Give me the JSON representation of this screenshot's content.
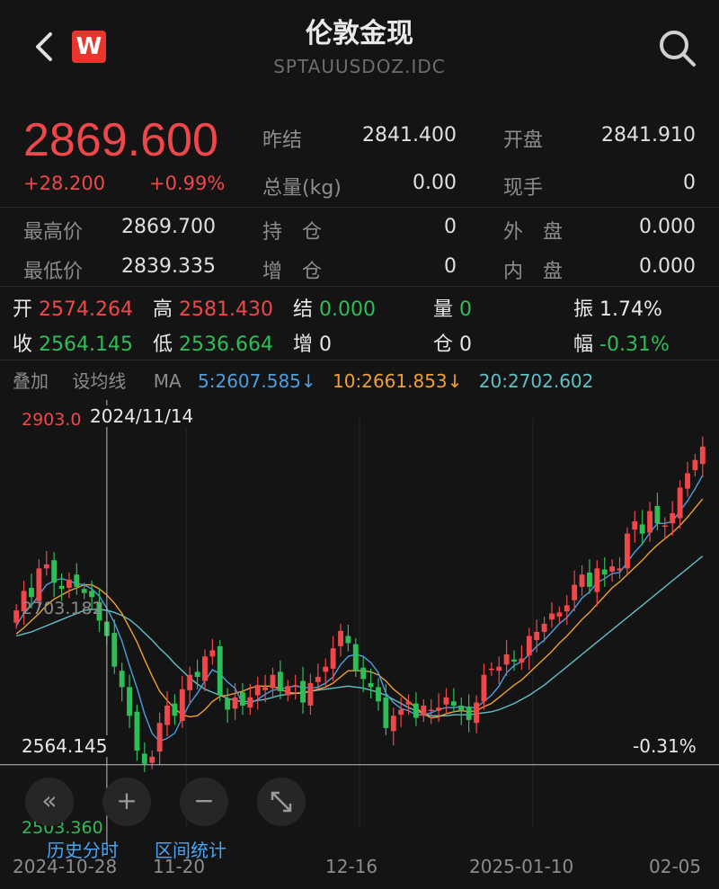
{
  "header": {
    "title": "伦敦金现",
    "code": "SPTAUUSDOZ.IDC",
    "logo": "W",
    "back_icon": "chevron-left-icon",
    "search_icon": "search-icon"
  },
  "quote": {
    "price": "2869.600",
    "change": "+28.200",
    "change_pct": "+0.99%",
    "prev_settle_label": "昨结",
    "prev_settle": "2841.400",
    "open_label": "开盘",
    "open": "2841.910",
    "volume_label": "总量(kg)",
    "volume": "0.00",
    "current_hand_label": "现手",
    "current_hand": "0",
    "high_label": "最高价",
    "high": "2869.700",
    "hold_label": "持　仓",
    "hold": "0",
    "outer_label": "外　盘",
    "outer": "0.000",
    "low_label": "最低价",
    "low": "2839.335",
    "add_label": "增　仓",
    "add": "0",
    "inner_label": "内　盘",
    "inner": "0.000"
  },
  "candle_info": {
    "open_label": "开",
    "open": "2574.264",
    "high_label": "高",
    "high": "2581.430",
    "settle_label": "结",
    "settle": "0.000",
    "vol_label": "量",
    "vol": "0",
    "amp_label": "振",
    "amp": "1.74%",
    "close_label": "收",
    "close": "2564.145",
    "low_label": "低",
    "low": "2536.664",
    "inc_label": "增",
    "inc": "0",
    "pos_label": "仓",
    "pos": "0",
    "range_label": "幅",
    "range": "-0.31%"
  },
  "ma_bar": {
    "overlay": "叠加",
    "set_ma": "设均线",
    "ma": "MA",
    "ma5": "5:2607.585↓",
    "ma10": "10:2661.853↓",
    "ma20": "20:2702.602",
    "ma5_color": "#4a9fe0",
    "ma10_color": "#f0a030",
    "ma20_color": "#5fc2c8"
  },
  "chart_labels": {
    "top_price": "2903.0",
    "crosshair_date": "2024/11/14",
    "mid_price": "2703.182",
    "crosshair_price": "2564.145",
    "crosshair_pct": "-0.31%",
    "bottom_price": "2503.360"
  },
  "controls": {
    "rewind": "«",
    "zoom_in": "+",
    "zoom_out": "−",
    "fullscreen_icon": "expand-icon",
    "history": "历史分时",
    "range_stats": "区间统计"
  },
  "x_axis": [
    "2024-10-28",
    "11-20",
    "12-16",
    "2025-01-10",
    "02-05"
  ],
  "colors": {
    "up": "#f0474b",
    "down": "#2fbd57",
    "bg": "#141414"
  },
  "chart_data": {
    "type": "candlestick",
    "ylim": [
      2503.36,
      2903.0
    ],
    "y_ticks": [
      2903.0,
      2703.182,
      2503.36
    ],
    "x_ticks": [
      "2024-10-28",
      "11-20",
      "12-16",
      "2025-01-10",
      "02-05"
    ],
    "crosshair": {
      "date": "2024/11/14",
      "value": 2564.145
    },
    "ma_latest": {
      "MA5": 2607.585,
      "MA10": 2661.853,
      "MA20": 2702.602
    },
    "close": [
      2715,
      2734,
      2728,
      2756,
      2760,
      2742,
      2736,
      2745,
      2738,
      2732,
      2728,
      2705,
      2690,
      2660,
      2640,
      2612,
      2578,
      2565,
      2572,
      2605,
      2622,
      2612,
      2638,
      2652,
      2650,
      2670,
      2676,
      2632,
      2618,
      2630,
      2622,
      2630,
      2642,
      2640,
      2652,
      2636,
      2641,
      2642,
      2625,
      2644,
      2650,
      2660,
      2678,
      2695,
      2683,
      2656,
      2648,
      2640,
      2626,
      2600,
      2612,
      2618,
      2626,
      2610,
      2622,
      2618,
      2620,
      2630,
      2622,
      2617,
      2608,
      2625,
      2652,
      2658,
      2660,
      2672,
      2665,
      2668,
      2690,
      2694,
      2702,
      2712,
      2713,
      2720,
      2740,
      2750,
      2738,
      2756,
      2750,
      2758,
      2756,
      2790,
      2802,
      2790,
      2812,
      2800,
      2798,
      2810,
      2835,
      2849,
      2862,
      2875
    ],
    "MA5": [
      2700,
      2712,
      2720,
      2730,
      2740,
      2744,
      2746,
      2744,
      2741,
      2740,
      2736,
      2729,
      2717,
      2703,
      2685,
      2661,
      2639,
      2614,
      2595,
      2587,
      2590,
      2595,
      2610,
      2624,
      2634,
      2646,
      2657,
      2653,
      2645,
      2639,
      2624,
      2624,
      2628,
      2633,
      2637,
      2638,
      2640,
      2641,
      2640,
      2639,
      2640,
      2644,
      2650,
      2662,
      2670,
      2672,
      2670,
      2664,
      2654,
      2634,
      2625,
      2619,
      2617,
      2613,
      2613,
      2615,
      2618,
      2620,
      2620,
      2621,
      2620,
      2620,
      2626,
      2632,
      2641,
      2654,
      2661,
      2665,
      2672,
      2680,
      2686,
      2694,
      2702,
      2708,
      2717,
      2727,
      2733,
      2742,
      2746,
      2751,
      2752,
      2762,
      2772,
      2780,
      2791,
      2800,
      2800,
      2802,
      2812,
      2822,
      2834,
      2847
    ],
    "MA10": [
      2692,
      2698,
      2705,
      2712,
      2720,
      2726,
      2730,
      2734,
      2737,
      2740,
      2740,
      2736,
      2730,
      2722,
      2712,
      2698,
      2684,
      2667,
      2651,
      2636,
      2627,
      2619,
      2613,
      2611,
      2612,
      2618,
      2626,
      2631,
      2632,
      2634,
      2636,
      2639,
      2641,
      2641,
      2641,
      2638,
      2635,
      2634,
      2634,
      2636,
      2638,
      2640,
      2644,
      2650,
      2656,
      2656,
      2656,
      2655,
      2652,
      2646,
      2638,
      2632,
      2626,
      2620,
      2614,
      2610,
      2611,
      2614,
      2616,
      2617,
      2616,
      2617,
      2621,
      2624,
      2630,
      2636,
      2642,
      2647,
      2654,
      2661,
      2668,
      2675,
      2683,
      2690,
      2698,
      2706,
      2713,
      2721,
      2729,
      2737,
      2743,
      2750,
      2757,
      2764,
      2772,
      2779,
      2785,
      2791,
      2798,
      2806,
      2815,
      2824
    ],
    "MA20": [
      2690,
      2692,
      2694,
      2697,
      2700,
      2703,
      2706,
      2709,
      2712,
      2715,
      2716,
      2716,
      2715,
      2713,
      2710,
      2706,
      2700,
      2693,
      2686,
      2678,
      2671,
      2663,
      2656,
      2649,
      2643,
      2638,
      2635,
      2632,
      2629,
      2627,
      2626,
      2626,
      2627,
      2628,
      2630,
      2632,
      2633,
      2634,
      2635,
      2636,
      2637,
      2638,
      2639,
      2640,
      2641,
      2640,
      2639,
      2637,
      2635,
      2632,
      2628,
      2624,
      2620,
      2617,
      2614,
      2612,
      2612,
      2612,
      2613,
      2613,
      2613,
      2614,
      2615,
      2616,
      2618,
      2621,
      2624,
      2628,
      2632,
      2637,
      2642,
      2648,
      2654,
      2660,
      2666,
      2672,
      2678,
      2684,
      2690,
      2696,
      2702,
      2708,
      2714,
      2720,
      2726,
      2732,
      2738,
      2744,
      2750,
      2756,
      2762,
      2768
    ]
  }
}
